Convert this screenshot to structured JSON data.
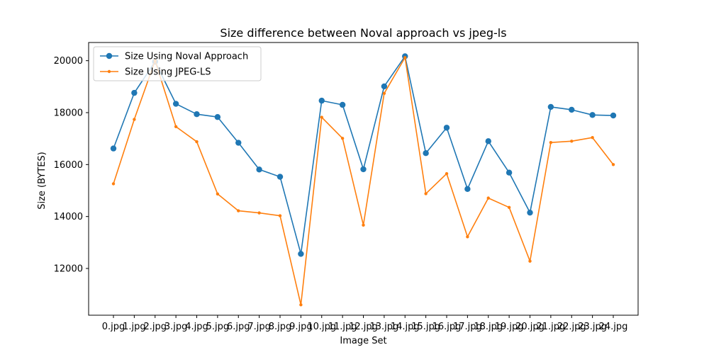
{
  "chart_data": {
    "type": "line",
    "title": "Size difference between Noval approach vs jpeg-ls",
    "xlabel": "Image Set",
    "ylabel": "Size (BYTES)",
    "categories": [
      "0.jpg",
      "1.jpg",
      "2.jpg",
      "3.jpg",
      "4.jpg",
      "5.jpg",
      "6.jpg",
      "7.jpg",
      "8.jpg",
      "9.jpg",
      "10.jpg",
      "11.jpg",
      "12.jpg",
      "13.jpg",
      "14.jpg",
      "15.jpg",
      "16.jpg",
      "17.jpg",
      "18.jpg",
      "19.jpg",
      "20.jpg",
      "21.jpg",
      "22.jpg",
      "23.jpg",
      "24.jpg"
    ],
    "yticks": [
      12000,
      14000,
      16000,
      18000,
      20000
    ],
    "ylim": [
      10200,
      20700
    ],
    "grid": false,
    "legend_position": "top-left",
    "series": [
      {
        "name": "Size Using Noval Approach",
        "color": "#1f77b4",
        "marker": "circle",
        "values": [
          16620,
          18760,
          19960,
          18340,
          17940,
          17830,
          16840,
          15810,
          15530,
          12560,
          18460,
          18300,
          15820,
          19010,
          20170,
          16440,
          17420,
          15060,
          16900,
          15690,
          14150,
          18220,
          18110,
          17910,
          17890
        ]
      },
      {
        "name": "Size Using JPEG-LS",
        "color": "#ff7f0e",
        "marker": "point",
        "values": [
          15260,
          17740,
          20000,
          17460,
          16880,
          14870,
          14220,
          14140,
          14030,
          10600,
          17820,
          17010,
          13670,
          18740,
          20120,
          14880,
          15650,
          13220,
          14710,
          14350,
          12280,
          16850,
          16900,
          17040,
          16000
        ]
      }
    ]
  }
}
